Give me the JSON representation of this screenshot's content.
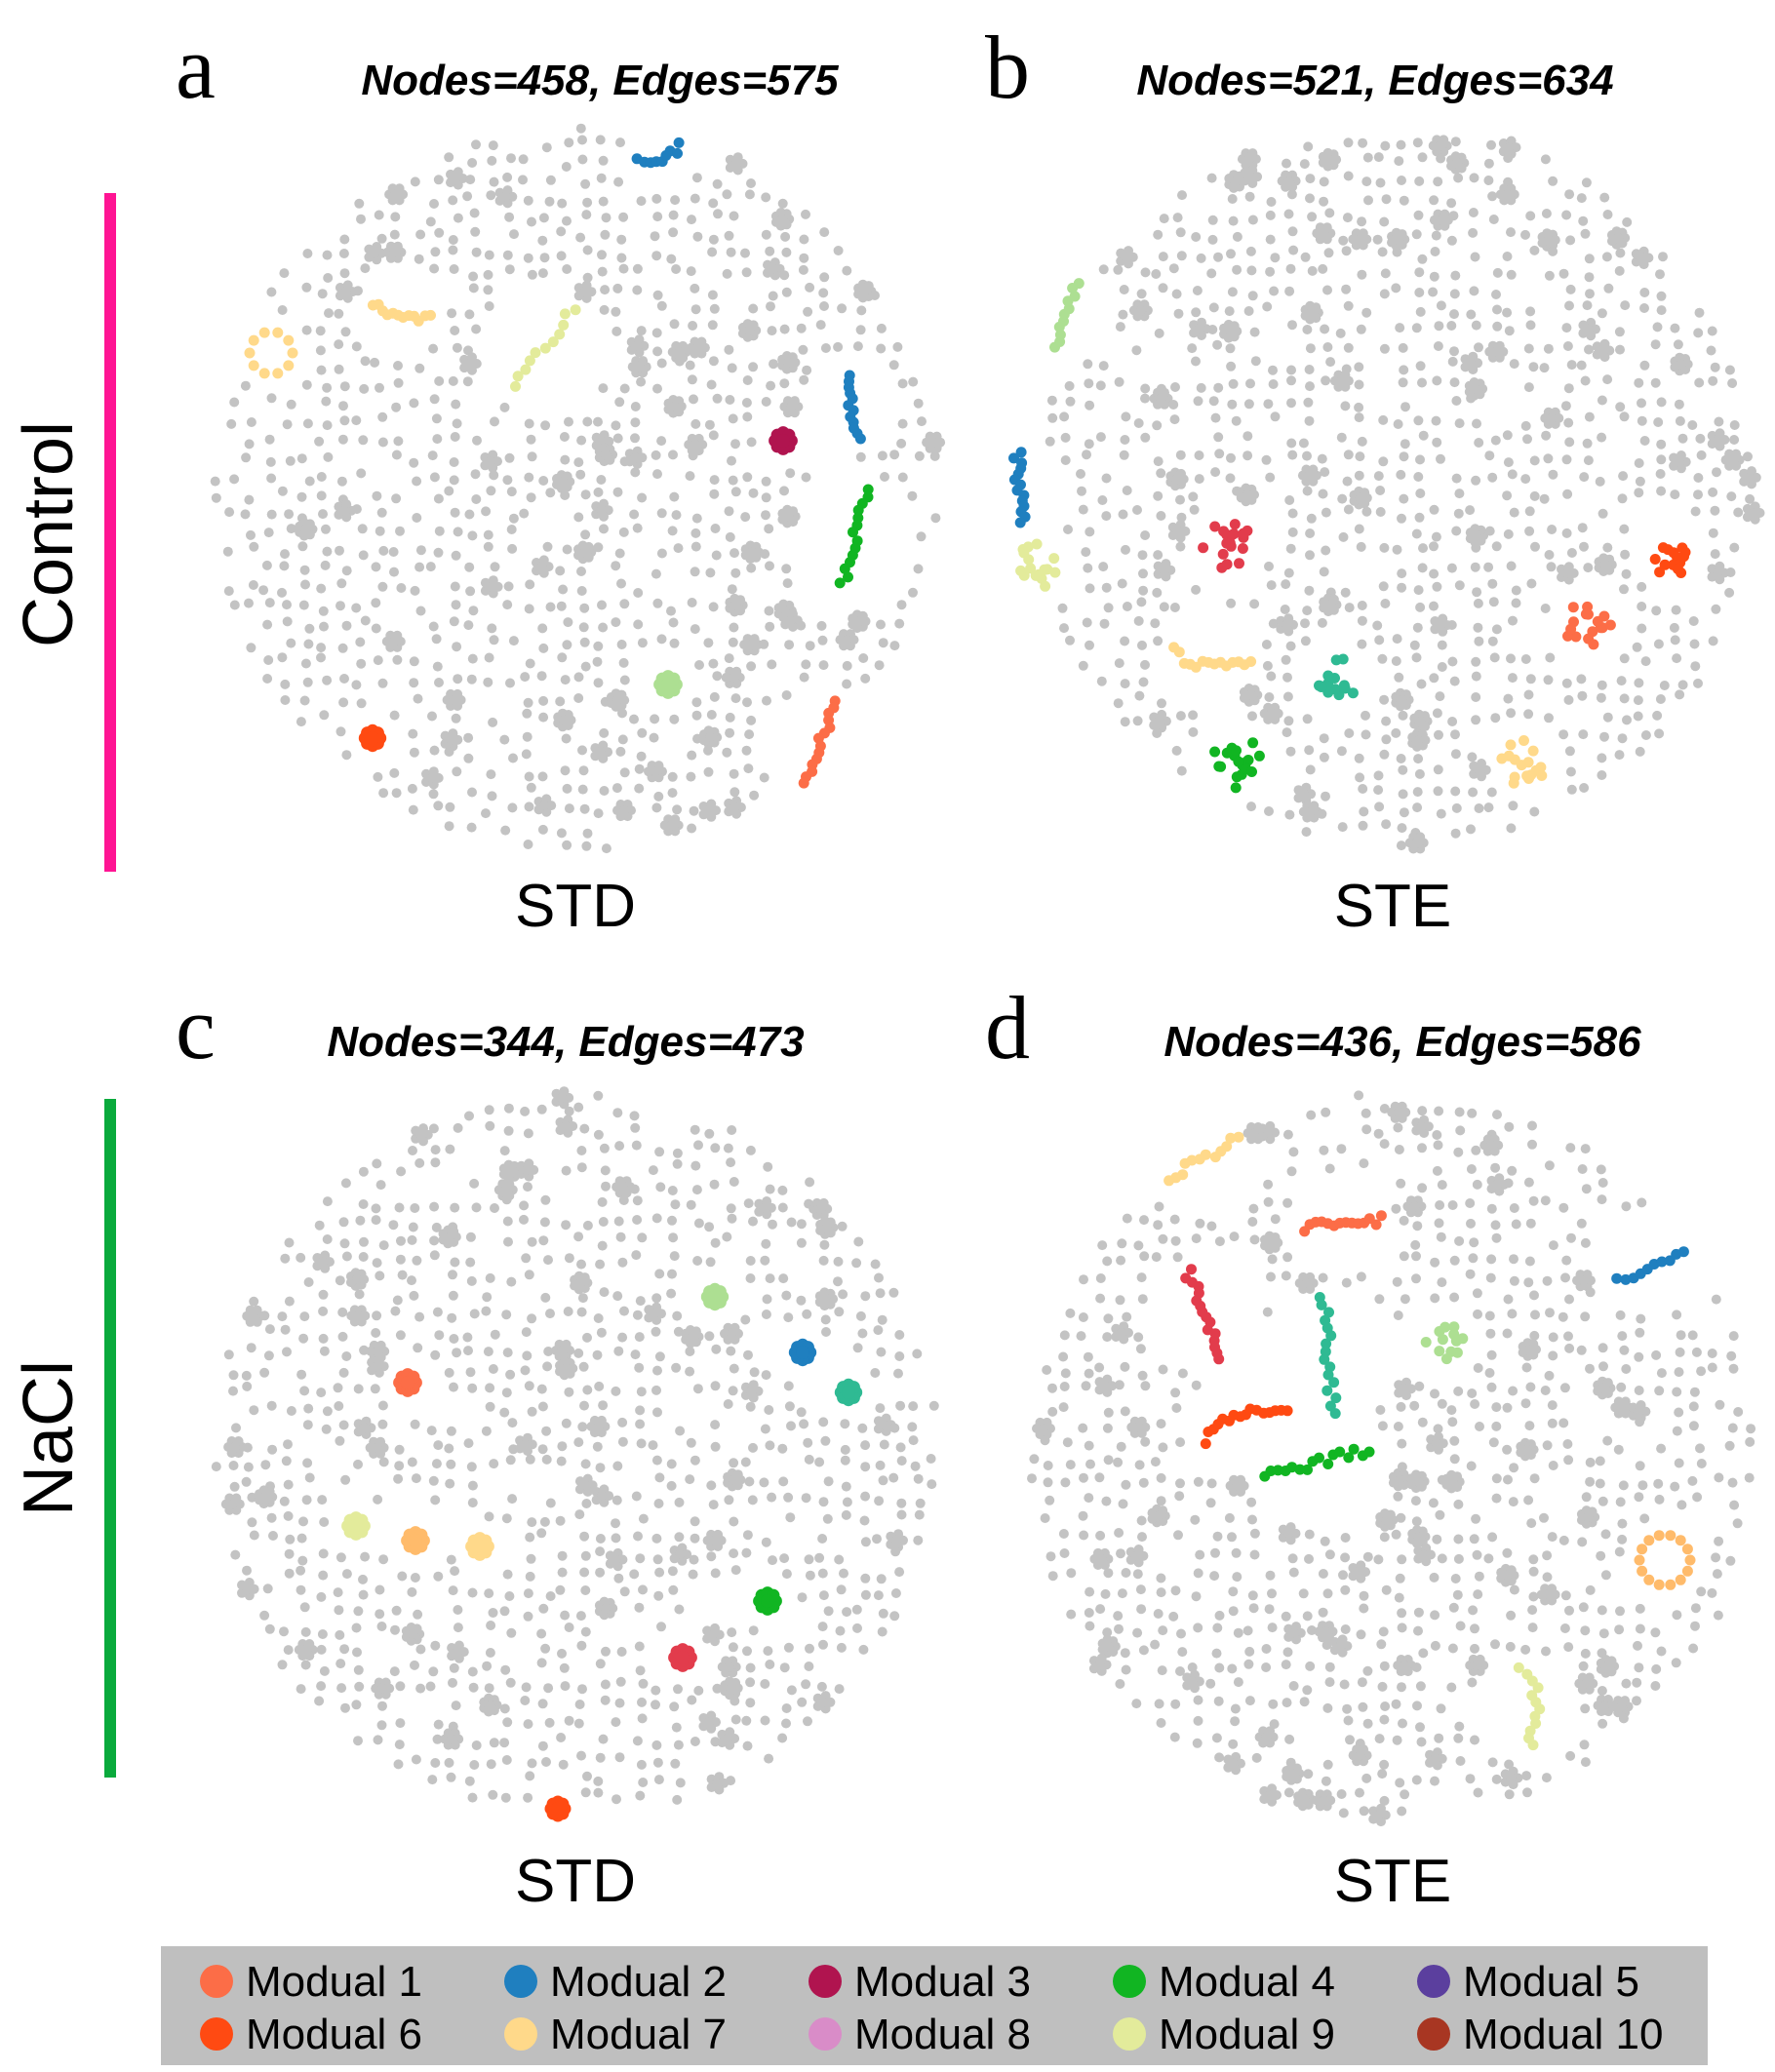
{
  "panels": [
    {
      "letter": "a",
      "title": "Nodes=458, Edges=575",
      "caption": "STD"
    },
    {
      "letter": "b",
      "title": "Nodes=521, Edges=634",
      "caption": "STE"
    },
    {
      "letter": "c",
      "title": "Nodes=344, Edges=473",
      "caption": "STD"
    },
    {
      "letter": "d",
      "title": "Nodes=436, Edges=586",
      "caption": "STE"
    }
  ],
  "row_labels": [
    {
      "label": "Control",
      "color": "#ff1493"
    },
    {
      "label": "NaCl",
      "color": "#0aaa3c"
    }
  ],
  "node_color": "#c3c3c3",
  "legend": {
    "background": "#bfbfbf",
    "items": [
      {
        "label": "Modual 1",
        "color": "#fc6d47"
      },
      {
        "label": "Modual 2",
        "color": "#1f7fbf"
      },
      {
        "label": "Modual 3",
        "color": "#b0144f"
      },
      {
        "label": "Modual 4",
        "color": "#11b522"
      },
      {
        "label": "Modual 5",
        "color": "#5b3f9e"
      },
      {
        "label": "Modual 6",
        "color": "#ff4a12"
      },
      {
        "label": "Modual 7",
        "color": "#ffd98a"
      },
      {
        "label": "Modual 8",
        "color": "#d98cc8"
      },
      {
        "label": "Modual 9",
        "color": "#e3eb9b"
      },
      {
        "label": "Modual 10",
        "color": "#a83622"
      }
    ]
  }
}
